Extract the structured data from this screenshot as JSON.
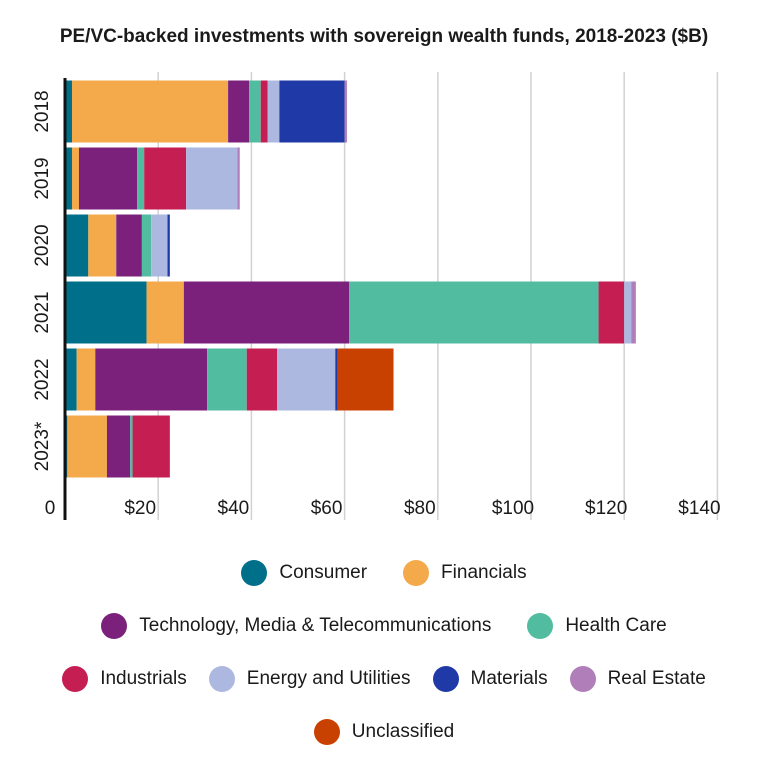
{
  "chart_data": {
    "type": "bar",
    "orientation": "horizontal",
    "stacked": true,
    "title": "PE/VC-backed investments with sovereign wealth funds, 2018-2023 ($B)",
    "categories": [
      "2018",
      "2019",
      "2020",
      "2021",
      "2022",
      "2023*"
    ],
    "x_tick_labels": [
      "0",
      "$20",
      "$40",
      "$60",
      "$80",
      "$100",
      "$120",
      "$140"
    ],
    "x_ticks": [
      0,
      20,
      40,
      60,
      80,
      100,
      120,
      140
    ],
    "xlim": [
      0,
      140
    ],
    "grid": true,
    "legend_position": "bottom",
    "series": [
      {
        "name": "Consumer",
        "color": "#006f8a",
        "values": [
          1.5,
          1.5,
          5.0,
          17.5,
          2.5,
          0.5
        ]
      },
      {
        "name": "Financials",
        "color": "#f4a94a",
        "values": [
          33.5,
          1.5,
          6.0,
          8.0,
          4.0,
          8.5
        ]
      },
      {
        "name": "Technology, Media & Telecommunications",
        "color": "#7b217c",
        "values": [
          4.5,
          12.5,
          5.5,
          35.5,
          24.0,
          5.0
        ]
      },
      {
        "name": "Health Care",
        "color": "#52bca0",
        "values": [
          2.5,
          1.5,
          2.0,
          53.5,
          8.5,
          0.5
        ]
      },
      {
        "name": "Industrials",
        "color": "#c41e52",
        "values": [
          1.5,
          9.0,
          0,
          5.5,
          6.5,
          8.0
        ]
      },
      {
        "name": "Energy and Utilities",
        "color": "#adb8e0",
        "values": [
          2.5,
          11.0,
          3.5,
          1.5,
          12.5,
          0
        ]
      },
      {
        "name": "Materials",
        "color": "#1f3aa6",
        "values": [
          14.0,
          0,
          0.5,
          0,
          0.5,
          0
        ]
      },
      {
        "name": "Real Estate",
        "color": "#b07eb8",
        "values": [
          0.5,
          0.5,
          0,
          1.0,
          0,
          0
        ]
      },
      {
        "name": "Unclassified",
        "color": "#c94100",
        "values": [
          0,
          0,
          0,
          0,
          12.0,
          0
        ]
      }
    ]
  },
  "legend_rows": [
    [
      "Consumer",
      "Financials"
    ],
    [
      "Technology, Media & Telecommunications",
      "Health Care"
    ],
    [
      "Industrials",
      "Energy and Utilities",
      "Materials",
      "Real Estate"
    ],
    [
      "Unclassified"
    ]
  ]
}
